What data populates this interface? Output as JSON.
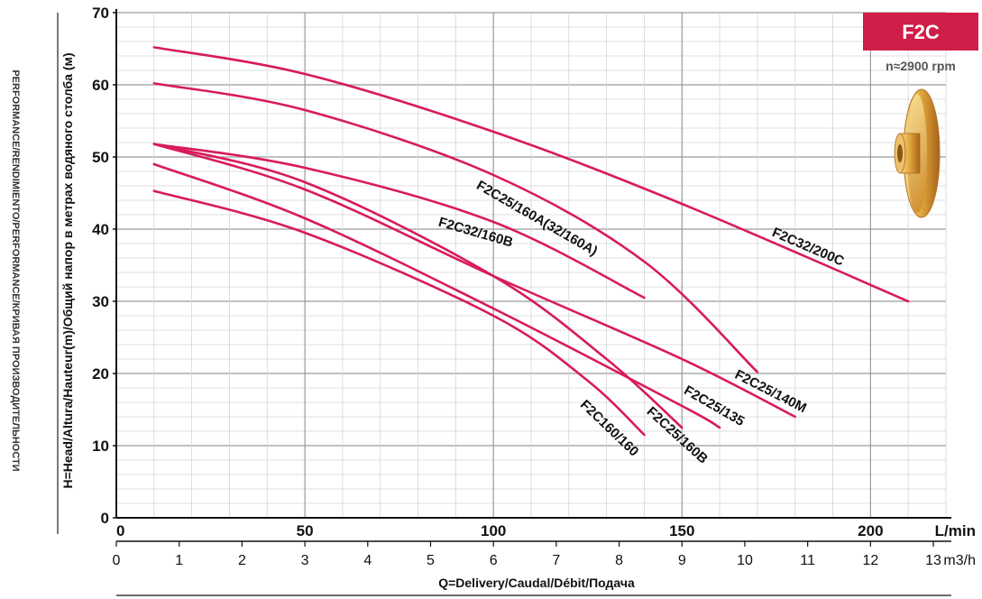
{
  "chart_data": {
    "type": "line",
    "title": "",
    "side_title": "PERFORMANCE/RENDIMIENTO/PERFORMANCE/КРИВАЯ ПРОИЗВОДИТЕЛЬНОСТИ",
    "ylabel": "H=Head/Altura/Hauteur(m)/Общий напор в метрах водяного столба (м)",
    "xlabel": "Q=Delivery/Caudal/Débit/Подача",
    "x_unit_primary": "L/min",
    "x_unit_secondary": "m3/h",
    "xlim": [
      0,
      220
    ],
    "ylim": [
      0,
      70
    ],
    "y_ticks": [
      0,
      10,
      20,
      30,
      40,
      50,
      60,
      70
    ],
    "x_ticks": [
      0,
      50,
      100,
      150,
      200
    ],
    "x_ticks_labels": [
      "0",
      "50",
      "100",
      "150",
      "200"
    ],
    "m3h_ticks": [
      0,
      1,
      2,
      3,
      4,
      5,
      6,
      7,
      8,
      9,
      10,
      11,
      12,
      13
    ],
    "m3h_labels": [
      "0",
      "1",
      "2",
      "3",
      "4",
      "5",
      "6",
      "7",
      "8",
      "9",
      "10",
      "11",
      "12",
      "13"
    ],
    "grid": true,
    "badge": "F2C",
    "speed": "n≈2900 rpm",
    "curve_color": "#d81b5a",
    "badge_color": "#cf1e48",
    "series": [
      {
        "name": "F2C32/200C",
        "x": [
          10,
          50,
          100,
          150,
          210
        ],
        "y": [
          65.2,
          61.5,
          53.5,
          43.5,
          30.0
        ],
        "label_at": [
          183,
          37
        ]
      },
      {
        "name": "F2C25/160A(32/160A)",
        "x": [
          10,
          50,
          100,
          140,
          170
        ],
        "y": [
          60.2,
          56.5,
          47.5,
          35.5,
          20.2
        ],
        "label_at": [
          111,
          41
        ]
      },
      {
        "name": "F2C32/160B",
        "x": [
          10,
          50,
          100,
          140
        ],
        "y": [
          51.8,
          48.5,
          41.0,
          30.5
        ],
        "label_at": [
          95,
          39
        ]
      },
      {
        "name": "F2C25/140M",
        "x": [
          10,
          50,
          100,
          150,
          180
        ],
        "y": [
          51.8,
          45.5,
          33.5,
          22.0,
          14.0
        ],
        "label_at": [
          173,
          17
        ]
      },
      {
        "name": "F2C25/135",
        "x": [
          10,
          50,
          100,
          150,
          160
        ],
        "y": [
          49.0,
          41.5,
          29.0,
          15.5,
          12.5
        ],
        "label_at": [
          158,
          15
        ]
      },
      {
        "name": "F2C25/160B",
        "x": [
          10,
          50,
          100,
          130,
          150
        ],
        "y": [
          51.8,
          46.5,
          33.5,
          22.0,
          12.5
        ],
        "label_at": [
          148,
          11
        ]
      },
      {
        "name": "F2C160/160",
        "x": [
          10,
          50,
          100,
          125,
          140
        ],
        "y": [
          45.3,
          39.5,
          28.0,
          19.0,
          11.5
        ],
        "label_at": [
          130,
          12
        ]
      }
    ]
  }
}
